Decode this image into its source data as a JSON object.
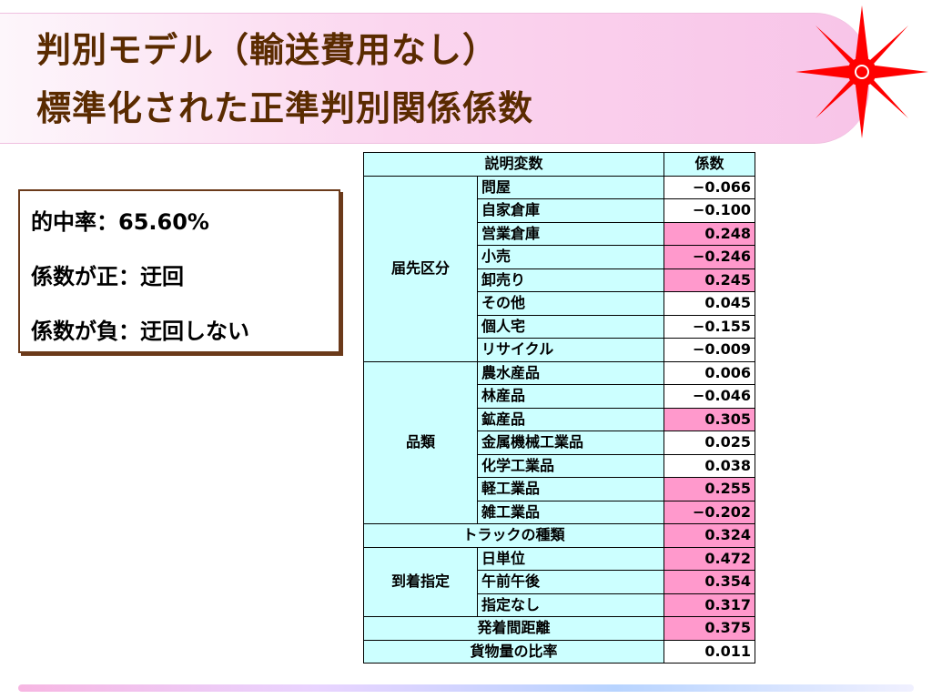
{
  "title": {
    "line1": "判別モデル（輸送費用なし）",
    "line2": "標準化された正準判別関係係数"
  },
  "summary": {
    "hit_rate": "的中率：65.60%",
    "positive": "係数が正：迂回",
    "negative": "係数が負：迂回しない"
  },
  "table": {
    "header_variable": "説明変数",
    "header_coef": "係数",
    "groups": [
      {
        "label": "届先区分",
        "rows": [
          {
            "item": "問屋",
            "value": "−0.066",
            "highlight": false
          },
          {
            "item": "自家倉庫",
            "value": "−0.100",
            "highlight": false
          },
          {
            "item": "営業倉庫",
            "value": "0.248",
            "highlight": true
          },
          {
            "item": "小売",
            "value": "−0.246",
            "highlight": true
          },
          {
            "item": "卸売り",
            "value": "0.245",
            "highlight": true
          },
          {
            "item": "その他",
            "value": "0.045",
            "highlight": false
          },
          {
            "item": "個人宅",
            "value": "−0.155",
            "highlight": false
          },
          {
            "item": "リサイクル",
            "value": "−0.009",
            "highlight": false
          }
        ]
      },
      {
        "label": "品類",
        "rows": [
          {
            "item": "農水産品",
            "value": "0.006",
            "highlight": false
          },
          {
            "item": "林産品",
            "value": "−0.046",
            "highlight": false
          },
          {
            "item": "鉱産品",
            "value": "0.305",
            "highlight": true
          },
          {
            "item": "金属機械工業品",
            "value": "0.025",
            "highlight": false
          },
          {
            "item": "化学工業品",
            "value": "0.038",
            "highlight": false
          },
          {
            "item": "軽工業品",
            "value": "0.255",
            "highlight": true
          },
          {
            "item": "雑工業品",
            "value": "−0.202",
            "highlight": true
          }
        ]
      },
      {
        "label": "トラックの種類",
        "value": "0.324",
        "highlight": true
      },
      {
        "label": "到着指定",
        "rows": [
          {
            "item": "日単位",
            "value": "0.472",
            "highlight": true
          },
          {
            "item": "午前午後",
            "value": "0.354",
            "highlight": true
          },
          {
            "item": "指定なし",
            "value": "0.317",
            "highlight": true
          }
        ]
      },
      {
        "label": "発着間距離",
        "value": "0.375",
        "highlight": true
      },
      {
        "label": "貨物量の比率",
        "value": "0.011",
        "highlight": false
      }
    ]
  },
  "colors": {
    "title_text": "#5a2b00",
    "highlight_cell": "#ff99cc",
    "label_cell": "#ccffff",
    "compass_red": "#ff0000"
  },
  "icons": {
    "compass": "compass-rose-icon"
  }
}
